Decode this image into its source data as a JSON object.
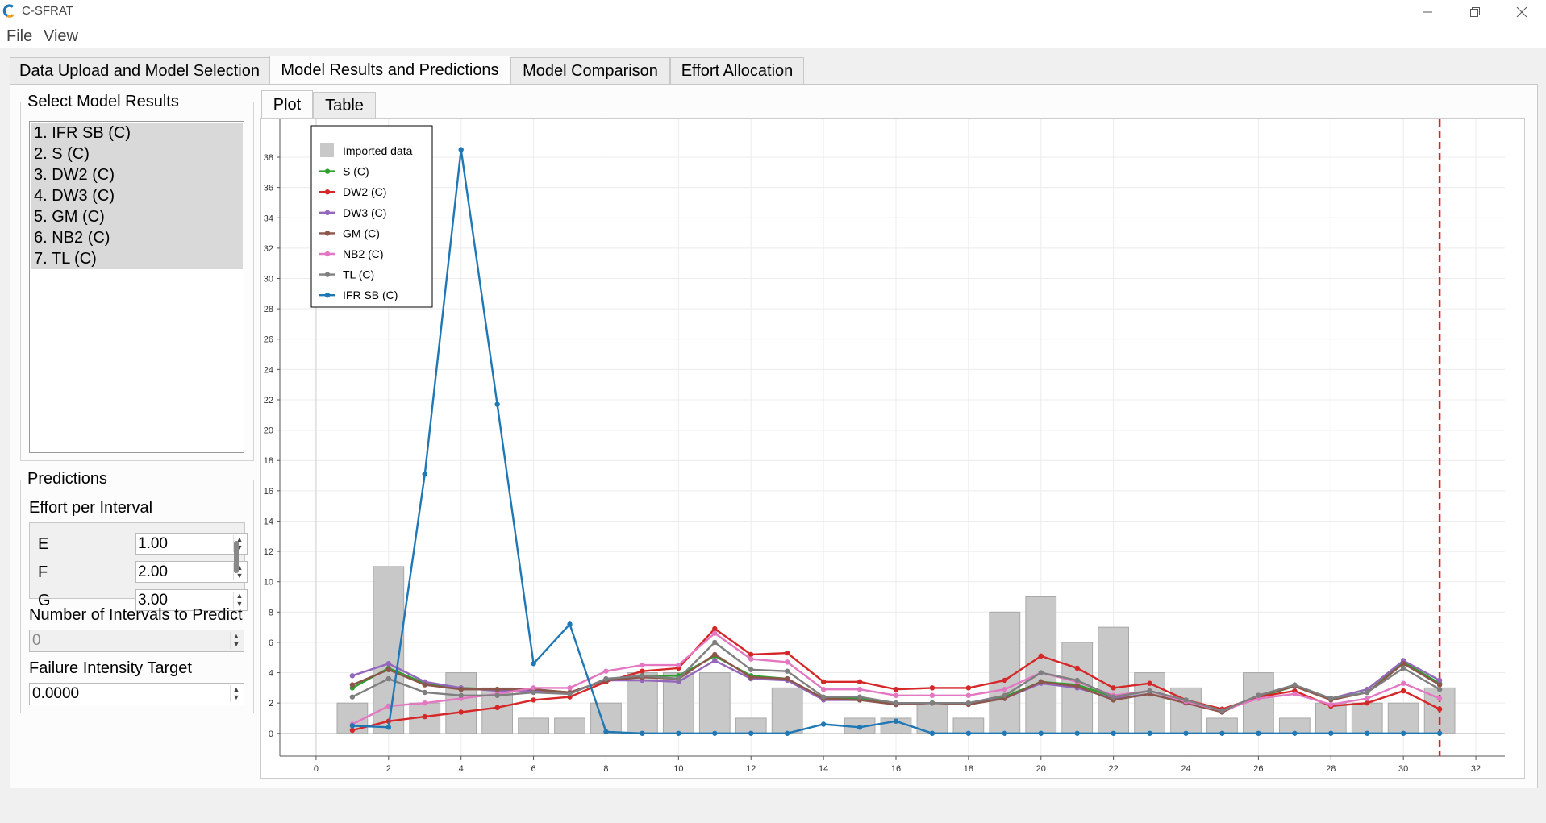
{
  "window": {
    "title": "C-SFRAT"
  },
  "menu": {
    "file": "File",
    "view": "View"
  },
  "tabs": [
    "Data Upload and Model Selection",
    "Model Results and Predictions",
    "Model Comparison",
    "Effort Allocation"
  ],
  "sidebar": {
    "select_title": "Select Model Results",
    "models": [
      "1. IFR SB (C)",
      "2. S (C)",
      "3. DW2 (C)",
      "4. DW3 (C)",
      "5. GM (C)",
      "6. NB2 (C)",
      "7. TL (C)"
    ],
    "predictions_title": "Predictions",
    "effort_label": "Effort per Interval",
    "effort_rows": [
      {
        "name": "E",
        "value": "1.00"
      },
      {
        "name": "F",
        "value": "2.00"
      },
      {
        "name": "G",
        "value": "3.00"
      }
    ],
    "intervals_label": "Number of Intervals to Predict",
    "intervals_value": "0",
    "target_label": "Failure Intensity Target",
    "target_value": "0.0000"
  },
  "plot_tabs": {
    "plot": "Plot",
    "table": "Table"
  },
  "colors": {
    "imported": "#c8c8c8",
    "S": "#2ca02c",
    "DW2": "#d62728",
    "DW3": "#9467bd",
    "GM": "#8c564b",
    "NB2": "#e377c2",
    "TL": "#7f7f7f",
    "IFR": "#1f77b4",
    "marker": "#e02020"
  },
  "chart_data": {
    "type": "bar",
    "xlim": [
      -1,
      32.8
    ],
    "ylim": [
      -1.5,
      40.5
    ],
    "x_ticks": [
      0,
      2,
      4,
      6,
      8,
      10,
      12,
      14,
      16,
      18,
      20,
      22,
      24,
      26,
      28,
      30,
      32
    ],
    "y_ticks": [
      0,
      2,
      4,
      6,
      8,
      10,
      12,
      14,
      16,
      18,
      20,
      22,
      24,
      26,
      28,
      30,
      32,
      34,
      36,
      38
    ],
    "bar_x": [
      1,
      2,
      3,
      4,
      5,
      6,
      7,
      8,
      9,
      10,
      11,
      12,
      13,
      14,
      15,
      16,
      17,
      18,
      19,
      20,
      21,
      22,
      23,
      24,
      25,
      26,
      27,
      28,
      29,
      30,
      31
    ],
    "bar_values": [
      2,
      11,
      2,
      4,
      3,
      1,
      1,
      2,
      4,
      4,
      4,
      1,
      3,
      0,
      1,
      1,
      2,
      1,
      8,
      9,
      6,
      7,
      4,
      3,
      1,
      4,
      1,
      2,
      2,
      2,
      3
    ],
    "line_x": [
      1,
      2,
      3,
      4,
      5,
      6,
      7,
      8,
      9,
      10,
      11,
      12,
      13,
      14,
      15,
      16,
      17,
      18,
      19,
      20,
      21,
      22,
      23,
      24,
      25,
      26,
      27,
      28,
      29,
      30,
      31
    ],
    "vline_x": 31,
    "legend": [
      "Imported data",
      "S (C)",
      "DW2 (C)",
      "DW3 (C)",
      "GM (C)",
      "NB2 (C)",
      "TL (C)",
      "IFR SB (C)"
    ],
    "series": [
      {
        "name": "S (C)",
        "color": "#2ca02c",
        "values": [
          3,
          4.3,
          3.3,
          3,
          2.9,
          2.9,
          2.7,
          3.5,
          3.8,
          3.8,
          5.1,
          3.8,
          3.6,
          2.3,
          2.3,
          2,
          2,
          2,
          2.4,
          3.4,
          3.2,
          2.4,
          2.8,
          2.1,
          1.5,
          2.4,
          3.1,
          2.3,
          2.9,
          4.7,
          3.3
        ]
      },
      {
        "name": "DW2 (C)",
        "color": "#d62728",
        "values": [
          0.2,
          0.8,
          1.1,
          1.4,
          1.7,
          2.2,
          2.4,
          3.4,
          4.1,
          4.3,
          6.9,
          5.2,
          5.3,
          3.4,
          3.4,
          2.9,
          3,
          3,
          3.5,
          5.1,
          4.3,
          3,
          3.3,
          2.2,
          1.6,
          2.4,
          2.8,
          1.8,
          2,
          2.8,
          1.6
        ]
      },
      {
        "name": "DW3 (C)",
        "color": "#9467bd",
        "values": [
          3.8,
          4.6,
          3.4,
          3,
          2.8,
          2.8,
          2.7,
          3.5,
          3.5,
          3.4,
          4.8,
          3.6,
          3.5,
          2.2,
          2.2,
          1.9,
          2,
          2,
          2.3,
          3.3,
          3,
          2.3,
          2.6,
          2,
          1.4,
          2.5,
          3.1,
          2.3,
          2.9,
          4.8,
          3.5
        ]
      },
      {
        "name": "GM (C)",
        "color": "#8c564b",
        "values": [
          3.2,
          4.2,
          3.2,
          2.9,
          2.9,
          2.9,
          2.7,
          3.5,
          3.7,
          3.6,
          5.2,
          3.7,
          3.6,
          2.3,
          2.2,
          1.9,
          2,
          1.9,
          2.3,
          3.4,
          3.1,
          2.2,
          2.6,
          2,
          1.4,
          2.5,
          3.1,
          2.2,
          2.7,
          4.6,
          3.2
        ]
      },
      {
        "name": "NB2 (C)",
        "color": "#e377c2",
        "values": [
          0.6,
          1.8,
          2,
          2.3,
          2.6,
          3,
          3,
          4.1,
          4.5,
          4.5,
          6.6,
          4.9,
          4.7,
          2.9,
          2.9,
          2.5,
          2.5,
          2.5,
          2.9,
          4,
          3.4,
          2.5,
          2.8,
          2.1,
          1.5,
          2.3,
          2.6,
          1.9,
          2.3,
          3.3,
          2.3
        ]
      },
      {
        "name": "TL (C)",
        "color": "#7f7f7f",
        "values": [
          2.4,
          3.6,
          2.7,
          2.5,
          2.5,
          2.7,
          2.6,
          3.6,
          3.8,
          3.6,
          6,
          4.2,
          4.1,
          2.4,
          2.4,
          2,
          2,
          2,
          2.5,
          4,
          3.5,
          2.4,
          2.8,
          2.2,
          1.5,
          2.5,
          3.2,
          2.3,
          2.7,
          4.3,
          2.9
        ]
      },
      {
        "name": "IFR SB (C)",
        "color": "#1f77b4",
        "values": [
          0.5,
          0.4,
          17.1,
          38.5,
          21.7,
          4.6,
          7.2,
          0.1,
          0,
          0,
          0,
          0,
          0,
          0.6,
          0.4,
          0.8,
          0,
          0,
          0,
          0,
          0,
          0,
          0,
          0,
          0,
          0,
          0,
          0,
          0,
          0,
          0
        ]
      }
    ]
  }
}
